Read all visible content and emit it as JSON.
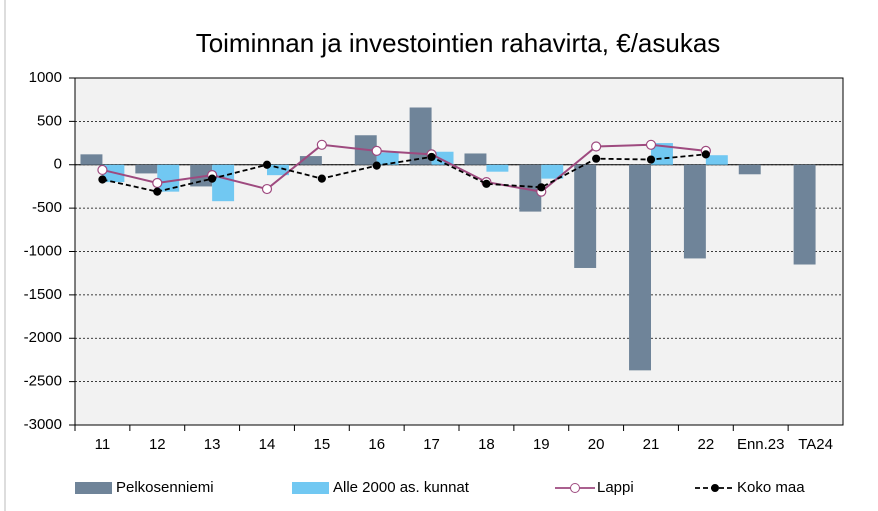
{
  "chart_data": {
    "type": "bar-line",
    "title": "Toiminnan ja investointien rahavirta, €/asukas",
    "categories": [
      "11",
      "12",
      "13",
      "14",
      "15",
      "16",
      "17",
      "18",
      "19",
      "20",
      "21",
      "22",
      "Enn.23",
      "TA24"
    ],
    "series": [
      {
        "name": "Pelkosenniemi",
        "kind": "bar",
        "color": "#6f8499",
        "values": [
          120,
          -100,
          -250,
          0,
          100,
          340,
          660,
          130,
          -540,
          -1190,
          -2370,
          -1080,
          -110,
          -1150
        ]
      },
      {
        "name": "Alle 2000 as. kunnat",
        "kind": "bar",
        "color": "#71c8f2",
        "values": [
          -200,
          -310,
          -420,
          -120,
          0,
          140,
          150,
          -80,
          -160,
          0,
          250,
          110,
          null,
          null
        ]
      },
      {
        "name": "Lappi",
        "kind": "line",
        "color": "#9e4a7f",
        "values": [
          -60,
          -210,
          -120,
          -280,
          230,
          160,
          120,
          -200,
          -310,
          210,
          230,
          160,
          null,
          null
        ]
      },
      {
        "name": "Koko maa",
        "kind": "line",
        "dashed": true,
        "color": "#000000",
        "values": [
          -170,
          -310,
          -160,
          0,
          -160,
          -10,
          90,
          -220,
          -260,
          70,
          60,
          120,
          null,
          null
        ]
      }
    ],
    "ylim": [
      -3000,
      1000
    ],
    "yticks": [
      -3000,
      -2500,
      -2000,
      -1500,
      -1000,
      -500,
      0,
      500,
      1000
    ],
    "grid": true,
    "legend": "bottom"
  }
}
